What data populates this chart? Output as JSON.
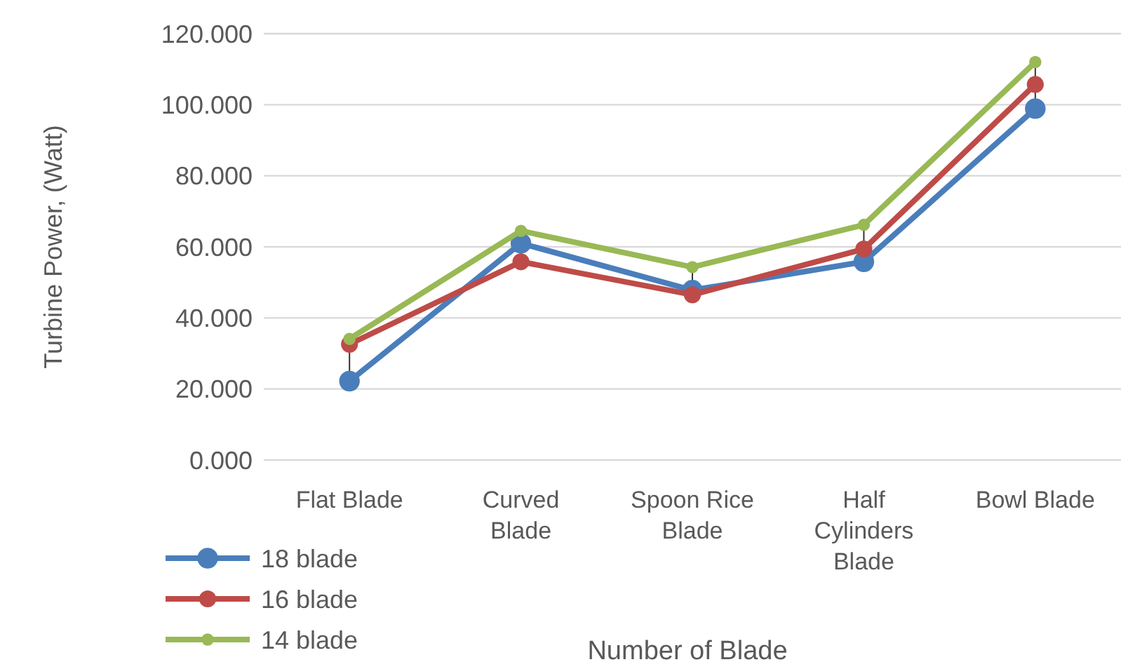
{
  "chart_data": {
    "type": "line",
    "xlabel": "Number of Blade",
    "ylabel": "Turbine Power, (Watt)",
    "categories": [
      "Flat Blade",
      "Curved Blade",
      "Spoon Rice Blade",
      "Half Cylinders Blade",
      "Bowl Blade"
    ],
    "series": [
      {
        "name": "18 blade",
        "color": "#4a7ebb",
        "values": [
          22.2,
          61,
          47.8,
          55.8,
          98.9
        ]
      },
      {
        "name": "16 blade",
        "color": "#be4b48",
        "values": [
          32.6,
          55.8,
          46.5,
          59.4,
          105.7
        ]
      },
      {
        "name": "14 blade",
        "color": "#98b954",
        "values": [
          34.1,
          64.5,
          54.3,
          66.2,
          112
        ]
      }
    ],
    "ylim": [
      0,
      120
    ],
    "yticks": [
      {
        "value": 0,
        "label": "0.000"
      },
      {
        "value": 20,
        "label": "20.000"
      },
      {
        "value": 40,
        "label": "40.000"
      },
      {
        "value": 60,
        "label": "60.000"
      },
      {
        "value": 80,
        "label": "80.000"
      },
      {
        "value": 100,
        "label": "100.000"
      },
      {
        "value": 120,
        "label": "120.000"
      }
    ],
    "grid": "y",
    "legend": "bottom left",
    "marker": "circle",
    "line_style": "solid"
  }
}
